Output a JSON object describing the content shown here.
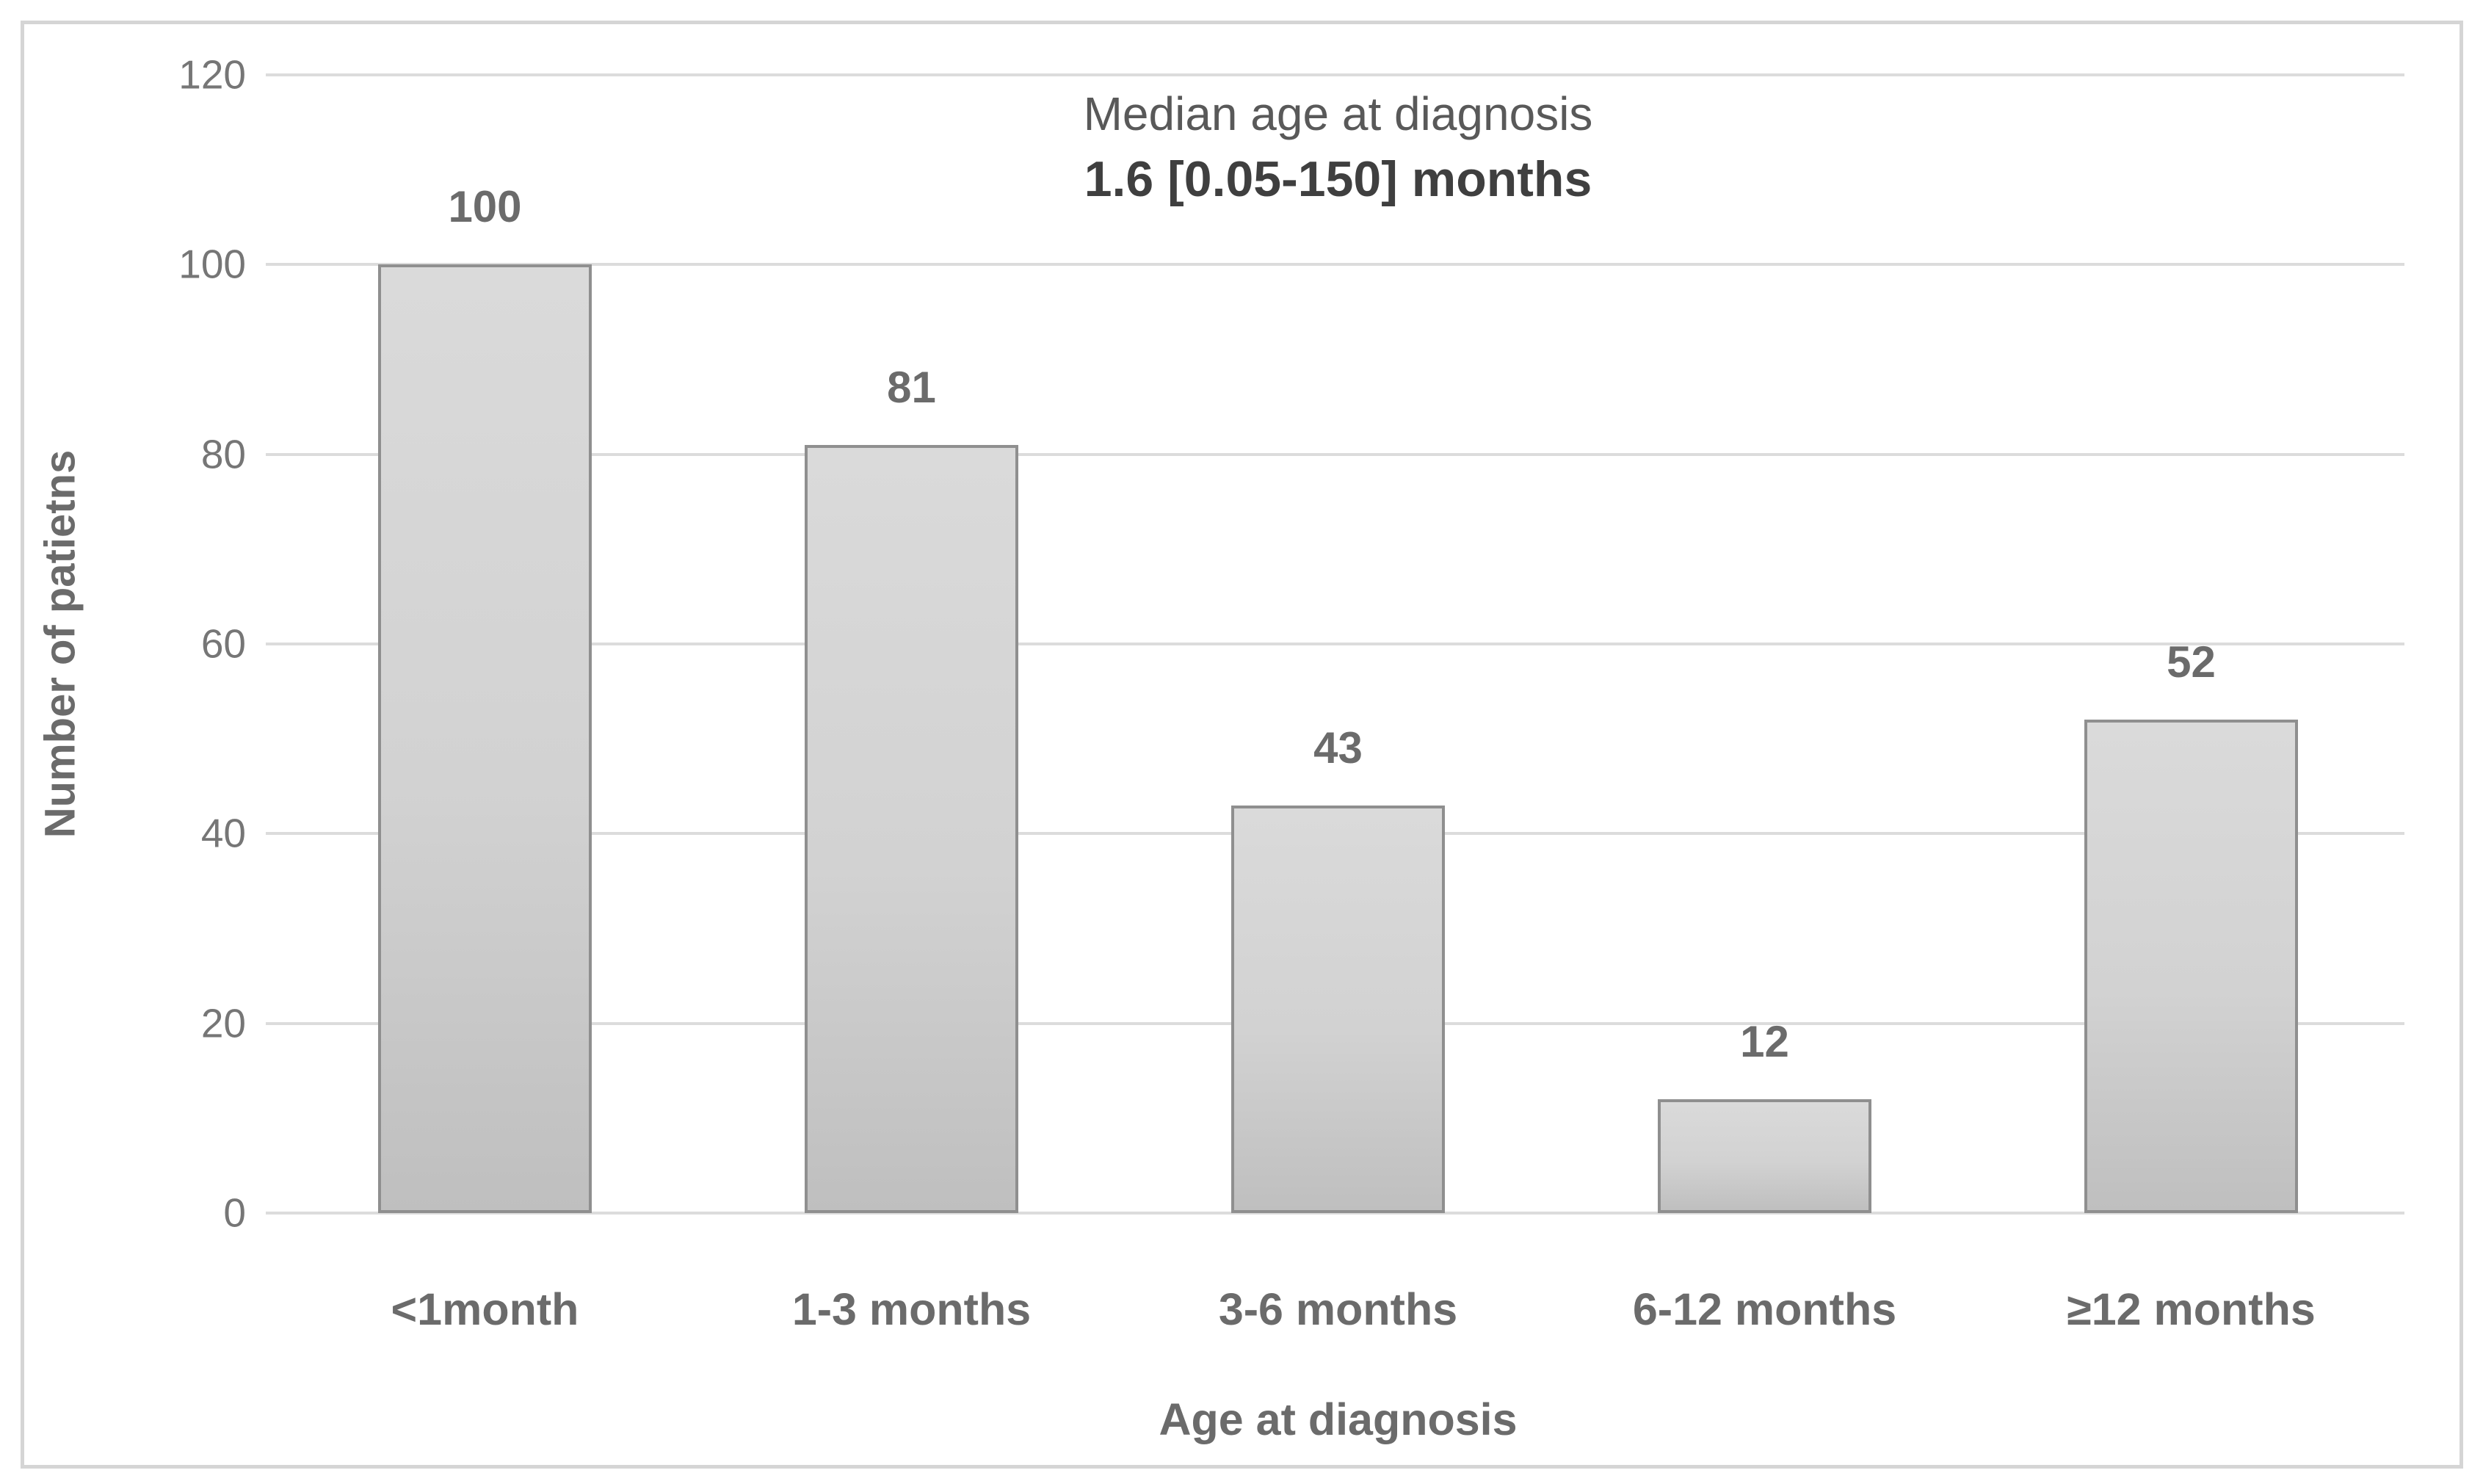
{
  "figure": {
    "background": "#ffffff",
    "frame_border_color": "#d5d5d5"
  },
  "chart_data": {
    "type": "bar",
    "title": "Median age at diagnosis",
    "subtitle": "1.6 [0.05-150] months",
    "xlabel": "Age at diagnosis",
    "ylabel": "Number of patietns",
    "categories": [
      "<1month",
      "1-3 months",
      "3-6 months",
      "6-12 months",
      "≥12 months"
    ],
    "values": [
      100,
      81,
      43,
      12,
      52
    ],
    "ylim": [
      0,
      120
    ],
    "ytick_step": 20,
    "yticks": [
      0,
      20,
      40,
      60,
      80,
      100,
      120
    ],
    "grid": true,
    "legend": "none",
    "data_labels": "outside-end",
    "colors": {
      "bar_fill_top": "#dadada",
      "bar_fill_bottom": "#bfbfbf",
      "bar_border": "#8f8f8f",
      "gridline": "#dcdcdc",
      "tick_label": "#767676",
      "bold_label": "#6b6b6b",
      "title": "#595959",
      "subtitle": "#3f3f3f"
    }
  }
}
